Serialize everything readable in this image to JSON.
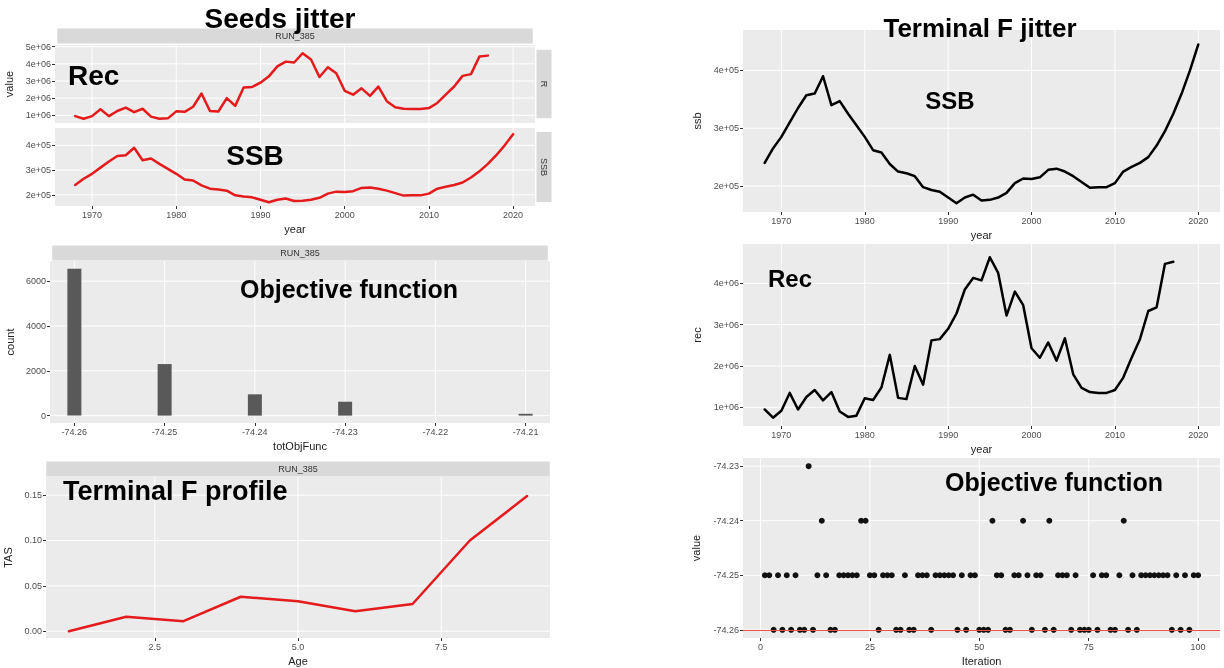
{
  "chart_data": [
    {
      "type": "line",
      "title": "Seeds jitter",
      "ylabel": "value",
      "annotations": [
        "RUN_385",
        "R",
        "Rec"
      ],
      "color": "#e41a1c",
      "x": [
        1968,
        1969,
        1970,
        1971,
        1972,
        1973,
        1974,
        1975,
        1976,
        1977,
        1978,
        1979,
        1980,
        1981,
        1982,
        1983,
        1984,
        1985,
        1986,
        1987,
        1988,
        1989,
        1990,
        1991,
        1992,
        1993,
        1994,
        1995,
        1996,
        1997,
        1998,
        1999,
        2000,
        2001,
        2002,
        2003,
        2004,
        2005,
        2006,
        2007,
        2008,
        2009,
        2010,
        2011,
        2012,
        2013,
        2014,
        2015,
        2016,
        2017
      ],
      "values": [
        950000,
        800000,
        950000,
        1350000,
        950000,
        1250000,
        1450000,
        1180000,
        1380000,
        920000,
        800000,
        820000,
        1230000,
        1200000,
        1500000,
        2270000,
        1250000,
        1220000,
        2000000,
        1550000,
        2620000,
        2650000,
        2900000,
        3270000,
        3850000,
        4130000,
        4080000,
        4620000,
        4250000,
        3230000,
        3800000,
        3450000,
        2430000,
        2200000,
        2570000,
        2130000,
        2670000,
        1820000,
        1470000,
        1380000,
        1360000,
        1360000,
        1420000,
        1720000,
        2200000,
        2680000,
        3300000,
        3400000,
        4430000,
        4480000
      ],
      "xlim": [
        1965.6,
        2022.6
      ],
      "xticks": [
        1970,
        1980,
        1990,
        2000,
        2010,
        2020
      ],
      "ylim": [
        550000,
        5100000
      ],
      "yticks": [
        {
          "value": 1000000,
          "label": "1e+06"
        },
        {
          "value": 2000000,
          "label": "2e+06"
        },
        {
          "value": 3000000,
          "label": "3e+06"
        },
        {
          "value": 4000000,
          "label": "4e+06"
        },
        {
          "value": 5000000,
          "label": "5e+06"
        }
      ],
      "grid": true,
      "tick_labels": "y"
    },
    {
      "type": "line",
      "xlabel": "year",
      "annotations": [
        "SSB",
        "SSB"
      ],
      "color": "#e41a1c",
      "x": [
        1968,
        1969,
        1970,
        1971,
        1972,
        1973,
        1974,
        1975,
        1976,
        1977,
        1978,
        1979,
        1980,
        1981,
        1982,
        1983,
        1984,
        1985,
        1986,
        1987,
        1988,
        1989,
        1990,
        1991,
        1992,
        1993,
        1994,
        1995,
        1996,
        1997,
        1998,
        1999,
        2000,
        2001,
        2002,
        2003,
        2004,
        2005,
        2006,
        2007,
        2008,
        2009,
        2010,
        2011,
        2012,
        2013,
        2014,
        2015,
        2016,
        2017,
        2018,
        2019,
        2020
      ],
      "values": [
        240000,
        265000,
        285000,
        310000,
        335000,
        357000,
        360000,
        390000,
        340000,
        347000,
        325000,
        305000,
        285000,
        262000,
        258000,
        238000,
        225000,
        222000,
        217000,
        198000,
        193000,
        190000,
        180000,
        170000,
        180000,
        185000,
        175000,
        176000,
        180000,
        188000,
        205000,
        213000,
        212000,
        215000,
        228000,
        230000,
        225000,
        217000,
        207000,
        197000,
        198000,
        198000,
        205000,
        225000,
        233000,
        240000,
        250000,
        270000,
        295000,
        325000,
        360000,
        400000,
        445000
      ],
      "xlim": [
        1965.6,
        2022.6
      ],
      "xticks": [
        1970,
        1980,
        1990,
        2000,
        2010,
        2020
      ],
      "ylim": [
        155000,
        470000
      ],
      "yticks": [
        {
          "value": 200000,
          "label": "2e+05"
        },
        {
          "value": 300000,
          "label": "3e+05"
        },
        {
          "value": 400000,
          "label": "4e+05"
        }
      ],
      "grid": true
    },
    {
      "type": "bar",
      "title": "Objective function",
      "xlabel": "totObjFunc",
      "ylabel": "count",
      "annotations": [
        "RUN_385"
      ],
      "color": "#595959",
      "x": [
        -74.26,
        -74.25,
        -74.24,
        -74.23,
        -74.21
      ],
      "values": [
        6550,
        2300,
        950,
        620,
        80
      ],
      "xlim": [
        -74.2627,
        -74.2073
      ],
      "xticks": [
        -74.26,
        -74.25,
        -74.24,
        -74.23,
        -74.22,
        -74.21
      ],
      "ylim": [
        -330,
        6900
      ],
      "yticks": [
        0,
        2000,
        4000,
        6000
      ],
      "grid": true
    },
    {
      "type": "line",
      "title": "Terminal F profile",
      "xlabel": "Age",
      "ylabel": "TAS",
      "annotations": [
        "RUN_385"
      ],
      "color": "#e41a1c",
      "x": [
        1,
        2,
        3,
        4,
        5,
        6,
        7,
        8,
        9
      ],
      "values": [
        0,
        0.016,
        0.011,
        0.038,
        0.033,
        0.022,
        0.03,
        0.1,
        0.149
      ],
      "xlim": [
        0.6,
        9.4
      ],
      "xticks": [
        {
          "value": 2.5,
          "label": "2.5"
        },
        {
          "value": 5,
          "label": "5.0"
        },
        {
          "value": 7.5,
          "label": "7.5"
        }
      ],
      "ylim": [
        -0.0075,
        0.17
      ],
      "yticks": [
        {
          "value": 0,
          "label": "0.00"
        },
        {
          "value": 0.05,
          "label": "0.05"
        },
        {
          "value": 0.1,
          "label": "0.10"
        },
        {
          "value": 0.15,
          "label": "0.15"
        }
      ],
      "grid": true
    },
    {
      "type": "line",
      "title": "Terminal F jitter",
      "xlabel": "year",
      "ylabel": "ssb",
      "annotations": [
        "SSB"
      ],
      "color": "#000000",
      "x": [
        1968,
        1969,
        1970,
        1971,
        1972,
        1973,
        1974,
        1975,
        1976,
        1977,
        1978,
        1979,
        1980,
        1981,
        1982,
        1983,
        1984,
        1985,
        1986,
        1987,
        1988,
        1989,
        1990,
        1991,
        1992,
        1993,
        1994,
        1995,
        1996,
        1997,
        1998,
        1999,
        2000,
        2001,
        2002,
        2003,
        2004,
        2005,
        2006,
        2007,
        2008,
        2009,
        2010,
        2011,
        2012,
        2013,
        2014,
        2015,
        2016,
        2017,
        2018,
        2019,
        2020
      ],
      "values": [
        240000,
        265000,
        285000,
        310000,
        335000,
        357000,
        360000,
        390000,
        340000,
        347000,
        325000,
        305000,
        285000,
        262000,
        258000,
        238000,
        225000,
        222000,
        217000,
        198000,
        193000,
        190000,
        180000,
        170000,
        180000,
        185000,
        175000,
        176000,
        180000,
        188000,
        205000,
        213000,
        212000,
        215000,
        228000,
        230000,
        225000,
        217000,
        207000,
        197000,
        198000,
        198000,
        205000,
        225000,
        233000,
        240000,
        250000,
        270000,
        295000,
        325000,
        360000,
        400000,
        445000
      ],
      "xlim": [
        1965.4,
        2022.6
      ],
      "xticks": [
        1970,
        1980,
        1990,
        2000,
        2010,
        2020
      ],
      "ylim": [
        155000,
        470000
      ],
      "yticks": [
        {
          "value": 200000,
          "label": "2e+05"
        },
        {
          "value": 300000,
          "label": "3e+05"
        },
        {
          "value": 400000,
          "label": "4e+05"
        }
      ],
      "grid": true
    },
    {
      "type": "line",
      "xlabel": "year",
      "ylabel": "rec",
      "annotations": [
        "Rec"
      ],
      "color": "#000000",
      "x": [
        1968,
        1969,
        1970,
        1971,
        1972,
        1973,
        1974,
        1975,
        1976,
        1977,
        1978,
        1979,
        1980,
        1981,
        1982,
        1983,
        1984,
        1985,
        1986,
        1987,
        1988,
        1989,
        1990,
        1991,
        1992,
        1993,
        1994,
        1995,
        1996,
        1997,
        1998,
        1999,
        2000,
        2001,
        2002,
        2003,
        2004,
        2005,
        2006,
        2007,
        2008,
        2009,
        2010,
        2011,
        2012,
        2013,
        2014,
        2015,
        2016,
        2017
      ],
      "values": [
        950000,
        750000,
        920000,
        1350000,
        950000,
        1250000,
        1420000,
        1170000,
        1370000,
        900000,
        770000,
        800000,
        1220000,
        1180000,
        1480000,
        2270000,
        1230000,
        1200000,
        2000000,
        1550000,
        2620000,
        2650000,
        2900000,
        3270000,
        3850000,
        4130000,
        4070000,
        4630000,
        4250000,
        3220000,
        3800000,
        3470000,
        2430000,
        2200000,
        2570000,
        2130000,
        2670000,
        1800000,
        1470000,
        1370000,
        1350000,
        1350000,
        1420000,
        1720000,
        2200000,
        2650000,
        3330000,
        3420000,
        4470000,
        4520000
      ],
      "xlim": [
        1965.4,
        2022.6
      ],
      "xticks": [
        1970,
        1980,
        1990,
        2000,
        2010,
        2020
      ],
      "ylim": [
        550000,
        4950000
      ],
      "yticks": [
        {
          "value": 1000000,
          "label": "1e+06"
        },
        {
          "value": 2000000,
          "label": "2e+06"
        },
        {
          "value": 3000000,
          "label": "3e+06"
        },
        {
          "value": 4000000,
          "label": "4e+06"
        }
      ],
      "grid": true
    },
    {
      "type": "scatter",
      "title": "Objective function",
      "xlabel": "Iteration",
      "ylabel": "value",
      "color": "#111111",
      "marker": "circle",
      "x": [
        1,
        2,
        3,
        4,
        5,
        6,
        7,
        8,
        9,
        10,
        11,
        12,
        13,
        14,
        15,
        16,
        17,
        18,
        19,
        20,
        21,
        22,
        23,
        24,
        25,
        26,
        27,
        28,
        29,
        30,
        31,
        32,
        33,
        34,
        35,
        36,
        37,
        38,
        39,
        40,
        41,
        42,
        43,
        44,
        45,
        46,
        47,
        48,
        49,
        50,
        51,
        52,
        53,
        54,
        55,
        56,
        57,
        58,
        59,
        60,
        61,
        62,
        63,
        64,
        65,
        66,
        67,
        68,
        69,
        70,
        71,
        72,
        73,
        74,
        75,
        76,
        77,
        78,
        79,
        80,
        81,
        82,
        83,
        84,
        85,
        86,
        87,
        88,
        89,
        90,
        91,
        92,
        93,
        94,
        95,
        96,
        97,
        98,
        99,
        100
      ],
      "values": [
        -74.25,
        -74.25,
        -74.26,
        -74.25,
        -74.26,
        -74.25,
        -74.26,
        -74.25,
        -74.26,
        -74.26,
        -74.23,
        -74.26,
        -74.25,
        -74.24,
        -74.25,
        -74.26,
        -74.26,
        -74.25,
        -74.25,
        -74.25,
        -74.25,
        -74.25,
        -74.24,
        -74.24,
        -74.25,
        -74.25,
        -74.26,
        -74.25,
        -74.25,
        -74.25,
        -74.26,
        -74.26,
        -74.25,
        -74.26,
        -74.26,
        -74.25,
        -74.25,
        -74.25,
        -74.26,
        -74.25,
        -74.25,
        -74.25,
        -74.25,
        -74.25,
        -74.26,
        -74.25,
        -74.26,
        -74.25,
        -74.25,
        -74.26,
        -74.26,
        -74.26,
        -74.24,
        -74.25,
        -74.25,
        -74.26,
        -74.26,
        -74.25,
        -74.25,
        -74.24,
        -74.25,
        -74.26,
        -74.25,
        -74.25,
        -74.26,
        -74.24,
        -74.26,
        -74.25,
        -74.25,
        -74.25,
        -74.26,
        -74.25,
        -74.26,
        -74.26,
        -74.26,
        -74.25,
        -74.26,
        -74.25,
        -74.25,
        -74.26,
        -74.26,
        -74.25,
        -74.24,
        -74.26,
        -74.25,
        -74.26,
        -74.25,
        -74.25,
        -74.25,
        -74.25,
        -74.25,
        -74.25,
        -74.25,
        -74.26,
        -74.25,
        -74.26,
        -74.25,
        -74.26,
        -74.25,
        -74.25
      ],
      "xlim": [
        -4,
        105
      ],
      "xticks": [
        0,
        25,
        50,
        75,
        100
      ],
      "ylim": [
        -74.2615,
        -74.2285
      ],
      "yticks": [
        -74.26,
        -74.25,
        -74.24,
        -74.23
      ],
      "ref_lines": [
        {
          "axis": "y",
          "value": -74.26,
          "color": "#e8514a"
        }
      ],
      "grid": true
    }
  ]
}
